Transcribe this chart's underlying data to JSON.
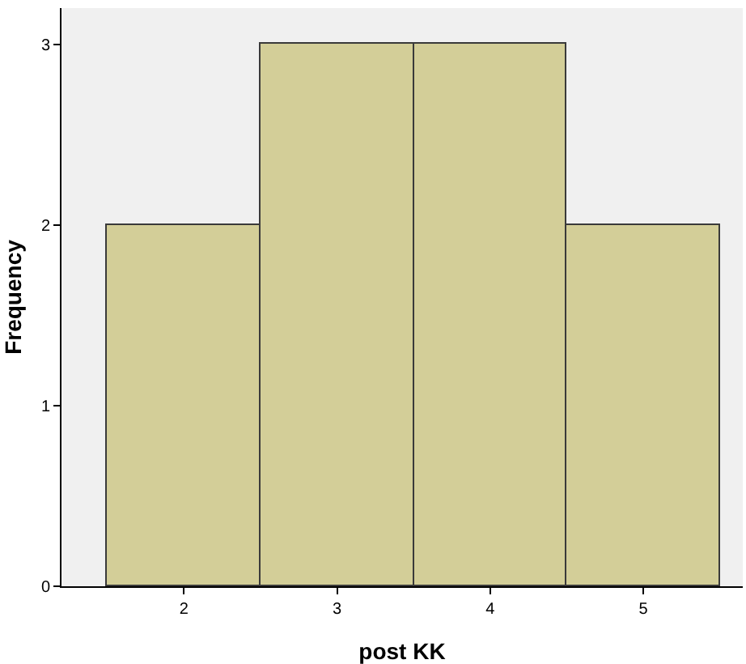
{
  "chart_data": {
    "type": "histogram",
    "xlabel": "post KK",
    "ylabel": "Frequency",
    "bins": [
      1.5,
      2.5,
      3.5,
      4.5,
      5.5
    ],
    "values": [
      2,
      3,
      3,
      2
    ],
    "color": "#d3ce98",
    "xlim": [
      1.2,
      5.65
    ],
    "xticks": [
      2,
      3,
      4,
      5
    ],
    "ylim": [
      0,
      3.2
    ],
    "yticks": [
      0,
      1,
      2,
      3
    ],
    "grid": false
  }
}
